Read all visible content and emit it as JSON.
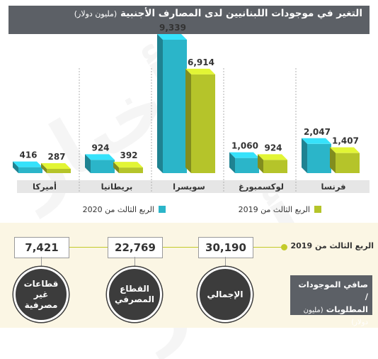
{
  "header": {
    "title": "التغير في موجودات اللبنانيين لدى المصارف الأجنبية",
    "unit": "(مليون دولار)"
  },
  "colors": {
    "q3_2020": "#2bb5c9",
    "q3_2019": "#b5c42a",
    "header_bg": "#5c6066",
    "circle_bg": "#3c3c3c",
    "bottom_bg": "#fbf6e4"
  },
  "chart_data": [
    {
      "type": "bar",
      "categories": [
        "أميركا",
        "بريطانيا",
        "سويسرا",
        "لوكسمبورغ",
        "فرنسا"
      ],
      "series": [
        {
          "name": "الربع الثالث من 2020",
          "values": [
            416,
            924,
            9339,
            1060,
            2047
          ]
        },
        {
          "name": "الربع الثالث من 2019",
          "values": [
            287,
            392,
            6914,
            924,
            1407
          ]
        }
      ],
      "value_labels": [
        [
          "416",
          "924",
          "9,339",
          "1,060",
          "2,047"
        ],
        [
          "287",
          "392",
          "6,914",
          "924",
          "1,407"
        ]
      ],
      "ylim": [
        0,
        9339
      ],
      "legend": "bottom"
    },
    {
      "type": "table",
      "row_label": "الربع الثالث من 2019",
      "categories": [
        "الإجمالي",
        "القطاع المصرفي",
        "قطاعات غير مصرفية"
      ],
      "values": [
        30190,
        22769,
        7421
      ],
      "value_labels": [
        "30,190",
        "22,769",
        "7,421"
      ],
      "title": "صافي الموجودات / المطلوبات",
      "unit": "(مليون دولار)"
    }
  ],
  "net": {
    "title_line1": "صافي الموجودات /",
    "title_line2": "المطلوبات",
    "unit": "(مليون دولار)",
    "row_label": "الربع الثالث من 2019",
    "items": [
      {
        "label_lines": [
          "الإجمالي"
        ],
        "value": "30,190"
      },
      {
        "label_lines": [
          "القطاع",
          "المصرفي"
        ],
        "value": "22,769"
      },
      {
        "label_lines": [
          "قطاعات",
          "غير",
          "مصرفية"
        ],
        "value": "7,421"
      }
    ]
  }
}
